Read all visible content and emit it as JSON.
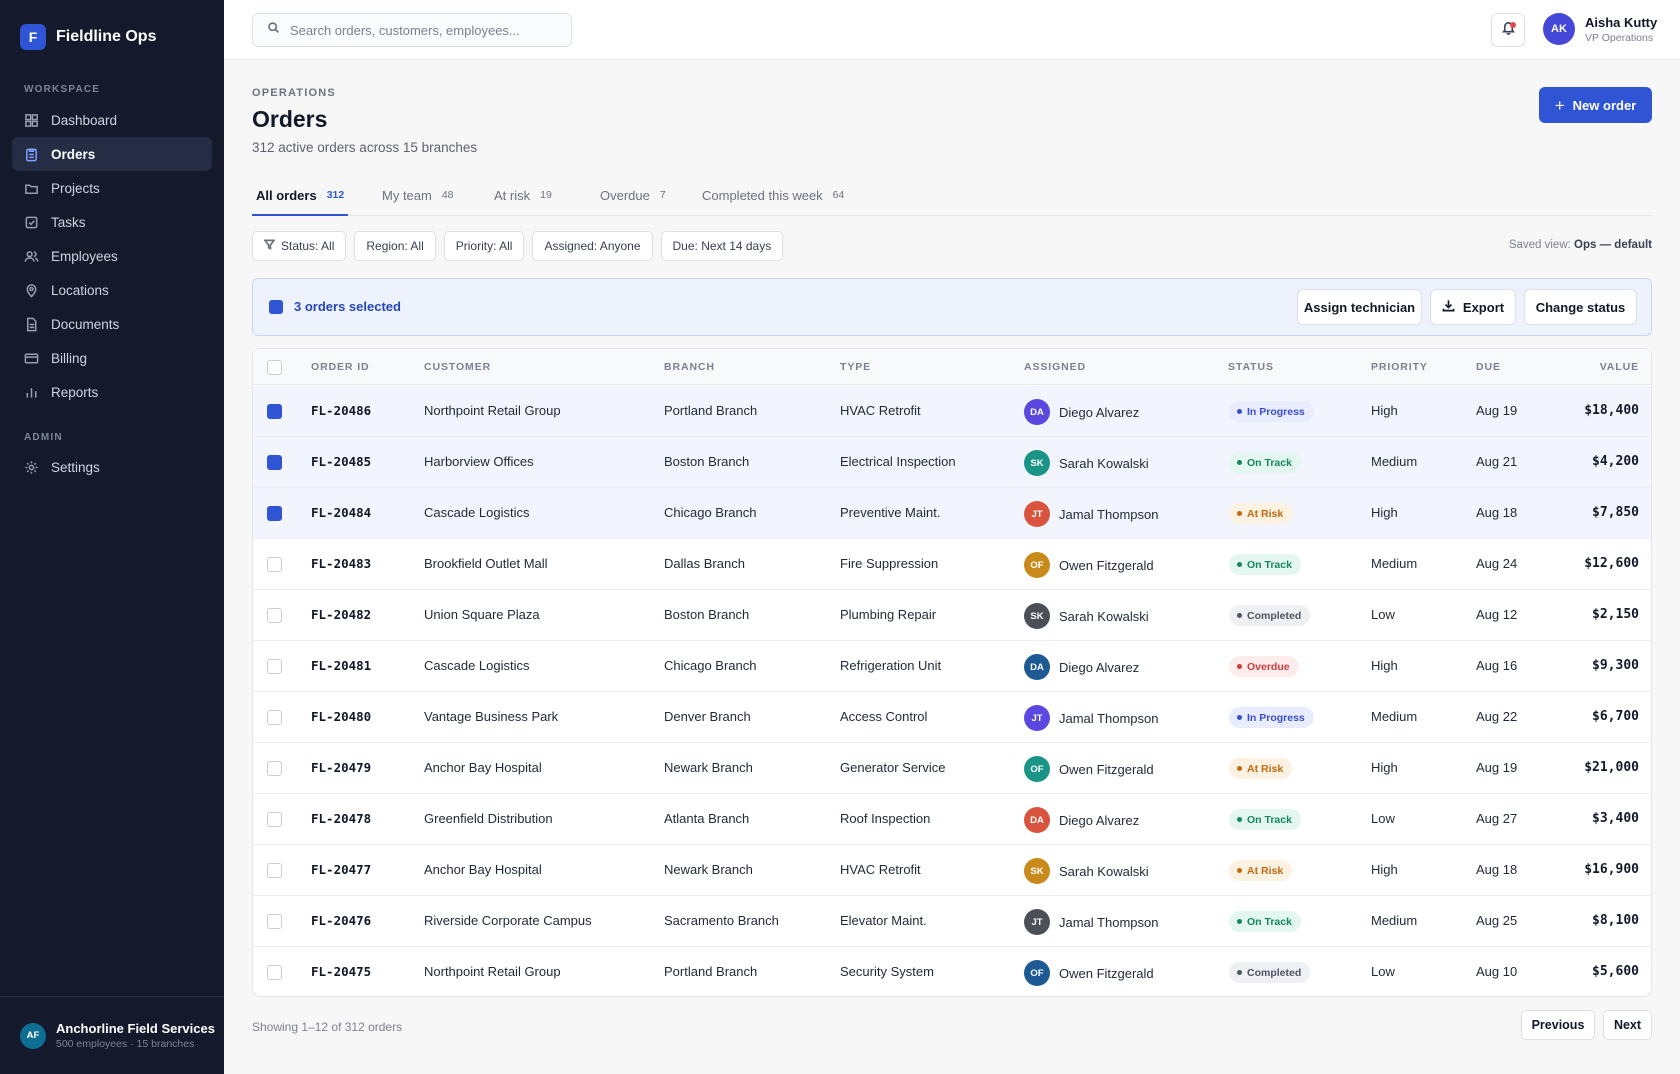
{
  "brand": {
    "logo_letter": "F",
    "name": "Fieldline Ops"
  },
  "sidebar": {
    "workspace_label": "WORKSPACE",
    "admin_label": "ADMIN",
    "items": [
      {
        "label": "Dashboard",
        "icon": "dashboard-grid-icon"
      },
      {
        "label": "Orders",
        "icon": "clipboard-icon",
        "active": true
      },
      {
        "label": "Projects",
        "icon": "folder-icon"
      },
      {
        "label": "Tasks",
        "icon": "checkbox-icon"
      },
      {
        "label": "Employees",
        "icon": "users-icon"
      },
      {
        "label": "Locations",
        "icon": "map-pin-icon"
      },
      {
        "label": "Documents",
        "icon": "document-icon"
      },
      {
        "label": "Billing",
        "icon": "credit-card-icon"
      },
      {
        "label": "Reports",
        "icon": "bar-chart-icon"
      }
    ],
    "admin_items": [
      {
        "label": "Settings",
        "icon": "gear-icon"
      }
    ],
    "org": {
      "initials": "AF",
      "name": "Anchorline Field Services",
      "sub": "500 employees · 15 branches"
    }
  },
  "topbar": {
    "search_placeholder": "Search orders, customers, employees...",
    "user": {
      "initials": "AK",
      "name": "Aisha Kutty",
      "role": "VP Operations"
    }
  },
  "header": {
    "eyebrow": "OPERATIONS",
    "title": "Orders",
    "subtitle": "312 active orders across 15 branches",
    "new_button": "New order"
  },
  "tabs": [
    {
      "label": "All orders",
      "count": "312",
      "active": true
    },
    {
      "label": "My team",
      "count": "48"
    },
    {
      "label": "At risk",
      "count": "19"
    },
    {
      "label": "Overdue",
      "count": "7"
    },
    {
      "label": "Completed this week",
      "count": "64"
    }
  ],
  "filters": [
    "Status: All",
    "Region: All",
    "Priority: All",
    "Assigned: Anyone",
    "Due: Next 14 days"
  ],
  "saved_view": {
    "label": "Saved view:",
    "value": "Ops — default"
  },
  "selection": {
    "text": "3 orders selected",
    "assign": "Assign technician",
    "export": "Export",
    "change_status": "Change status"
  },
  "columns": {
    "order_id": "ORDER ID",
    "customer": "CUSTOMER",
    "branch": "BRANCH",
    "type": "TYPE",
    "assigned": "ASSIGNED",
    "status": "STATUS",
    "priority": "PRIORITY",
    "due": "DUE",
    "value": "VALUE"
  },
  "status_styles": {
    "In Progress": {
      "bg": "#e8ecfd",
      "fg": "#3a4fcf"
    },
    "On Track": {
      "bg": "#e3f6ef",
      "fg": "#15875c"
    },
    "At Risk": {
      "bg": "#fdf1e2",
      "fg": "#c26a10"
    },
    "Completed": {
      "bg": "#eef0f3",
      "fg": "#4b5563"
    },
    "Overdue": {
      "bg": "#fdecec",
      "fg": "#d23b3b"
    }
  },
  "orders": [
    {
      "id": "FL-20486",
      "customer": "Northpoint Retail Group",
      "branch": "Portland Branch",
      "type": "HVAC Retrofit",
      "initials": "DA",
      "avatar_color": "#5b48e0",
      "assigned": "Diego Alvarez",
      "status": "In Progress",
      "priority": "High",
      "due": "Aug 19",
      "value": "$18,400",
      "selected": true
    },
    {
      "id": "FL-20485",
      "customer": "Harborview Offices",
      "branch": "Boston Branch",
      "type": "Electrical Inspection",
      "initials": "SK",
      "avatar_color": "#1a9486",
      "assigned": "Sarah Kowalski",
      "status": "On Track",
      "priority": "Medium",
      "due": "Aug 21",
      "value": "$4,200",
      "selected": true
    },
    {
      "id": "FL-20484",
      "customer": "Cascade Logistics",
      "branch": "Chicago Branch",
      "type": "Preventive Maint.",
      "initials": "JT",
      "avatar_color": "#d9543f",
      "assigned": "Jamal Thompson",
      "status": "At Risk",
      "priority": "High",
      "due": "Aug 18",
      "value": "$7,850",
      "selected": true
    },
    {
      "id": "FL-20483",
      "customer": "Brookfield Outlet Mall",
      "branch": "Dallas Branch",
      "type": "Fire Suppression",
      "initials": "OF",
      "avatar_color": "#c98a1c",
      "assigned": "Owen Fitzgerald",
      "status": "On Track",
      "priority": "Medium",
      "due": "Aug 24",
      "value": "$12,600"
    },
    {
      "id": "FL-20482",
      "customer": "Union Square Plaza",
      "branch": "Boston Branch",
      "type": "Plumbing Repair",
      "initials": "SK",
      "avatar_color": "#4b4f57",
      "assigned": "Sarah Kowalski",
      "status": "Completed",
      "priority": "Low",
      "due": "Aug 12",
      "value": "$2,150"
    },
    {
      "id": "FL-20481",
      "customer": "Cascade Logistics",
      "branch": "Chicago Branch",
      "type": "Refrigeration Unit",
      "initials": "DA",
      "avatar_color": "#1d5a93",
      "assigned": "Diego Alvarez",
      "status": "Overdue",
      "priority": "High",
      "due": "Aug 16",
      "value": "$9,300"
    },
    {
      "id": "FL-20480",
      "customer": "Vantage Business Park",
      "branch": "Denver Branch",
      "type": "Access Control",
      "initials": "JT",
      "avatar_color": "#5b48e0",
      "assigned": "Jamal Thompson",
      "status": "In Progress",
      "priority": "Medium",
      "due": "Aug 22",
      "value": "$6,700"
    },
    {
      "id": "FL-20479",
      "customer": "Anchor Bay Hospital",
      "branch": "Newark Branch",
      "type": "Generator Service",
      "initials": "OF",
      "avatar_color": "#1a9486",
      "assigned": "Owen Fitzgerald",
      "status": "At Risk",
      "priority": "High",
      "due": "Aug 19",
      "value": "$21,000"
    },
    {
      "id": "FL-20478",
      "customer": "Greenfield Distribution",
      "branch": "Atlanta Branch",
      "type": "Roof Inspection",
      "initials": "DA",
      "avatar_color": "#d9543f",
      "assigned": "Diego Alvarez",
      "status": "On Track",
      "priority": "Low",
      "due": "Aug 27",
      "value": "$3,400"
    },
    {
      "id": "FL-20477",
      "customer": "Anchor Bay Hospital",
      "branch": "Newark Branch",
      "type": "HVAC Retrofit",
      "initials": "SK",
      "avatar_color": "#c98a1c",
      "assigned": "Sarah Kowalski",
      "status": "At Risk",
      "priority": "High",
      "due": "Aug 18",
      "value": "$16,900"
    },
    {
      "id": "FL-20476",
      "customer": "Riverside Corporate Campus",
      "branch": "Sacramento Branch",
      "type": "Elevator Maint.",
      "initials": "JT",
      "avatar_color": "#4b4f57",
      "assigned": "Jamal Thompson",
      "status": "On Track",
      "priority": "Medium",
      "due": "Aug 25",
      "value": "$8,100"
    },
    {
      "id": "FL-20475",
      "customer": "Northpoint Retail Group",
      "branch": "Portland Branch",
      "type": "Security System",
      "initials": "OF",
      "avatar_color": "#1d5a93",
      "assigned": "Owen Fitzgerald",
      "status": "Completed",
      "priority": "Low",
      "due": "Aug 10",
      "value": "$5,600"
    }
  ],
  "footer": {
    "showing": "Showing 1–12 of 312 orders",
    "previous": "Previous",
    "next": "Next"
  }
}
